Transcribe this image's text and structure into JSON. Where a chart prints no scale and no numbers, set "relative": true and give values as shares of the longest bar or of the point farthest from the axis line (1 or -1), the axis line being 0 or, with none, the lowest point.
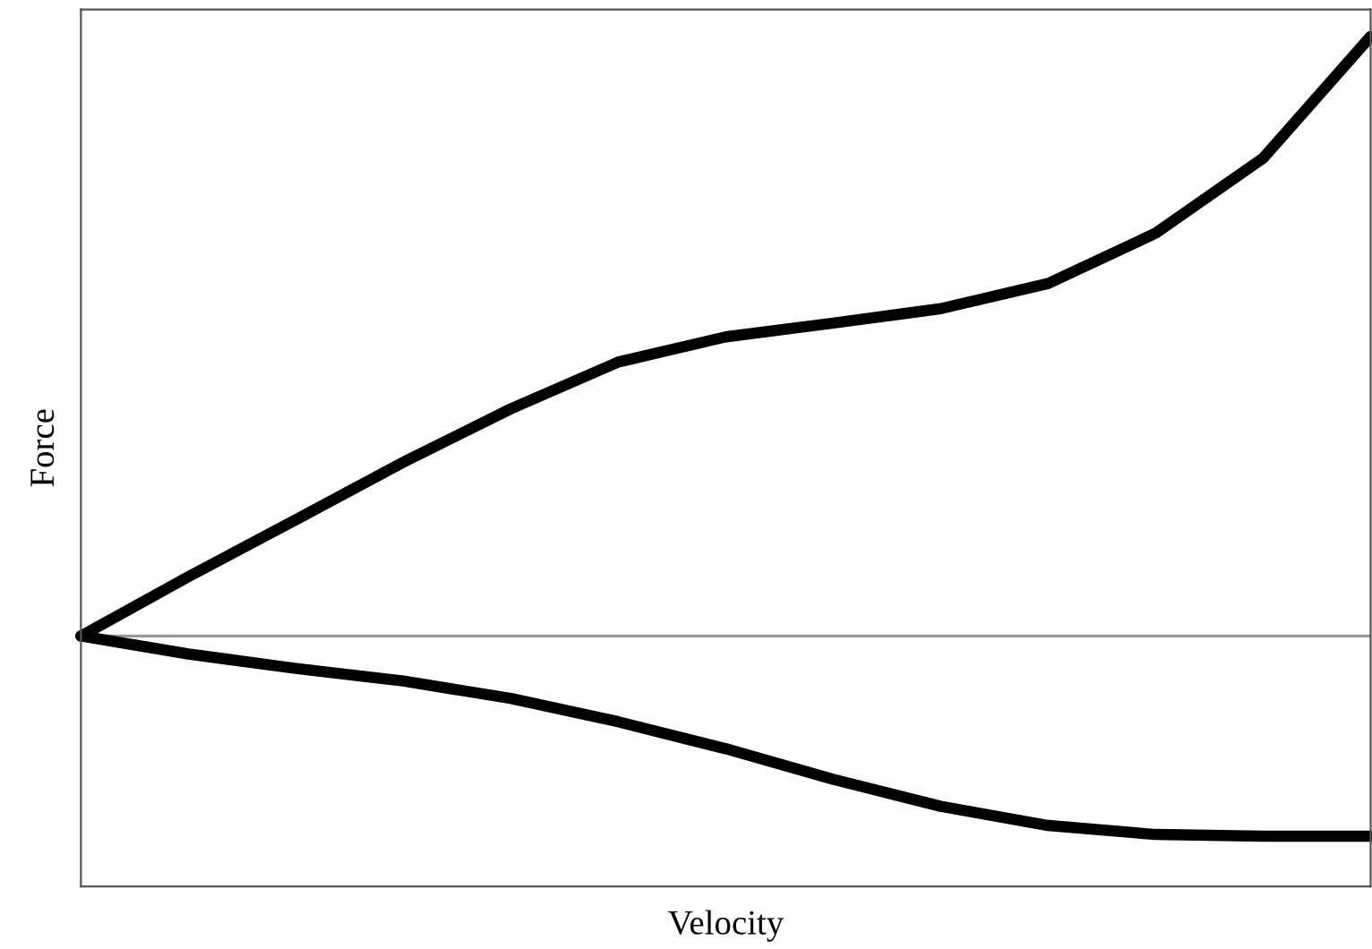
{
  "chart_data": {
    "type": "line",
    "relative": true,
    "xlabel": "Velocity",
    "ylabel": "Force",
    "categories": [
      null,
      null,
      null,
      null,
      null,
      null,
      null,
      null,
      null,
      null,
      null,
      null,
      null
    ],
    "series": [
      {
        "color": "#000000",
        "values": [
          0,
          0.099,
          0.194,
          0.29,
          0.379,
          0.457,
          0.499,
          0.522,
          0.546,
          0.588,
          0.672,
          0.797,
          1
        ]
      },
      {
        "color": "#000000",
        "values": [
          0,
          -0.03,
          -0.054,
          -0.075,
          -0.104,
          -0.143,
          -0.188,
          -0.239,
          -0.284,
          -0.316,
          -0.331,
          -0.334,
          -0.334
        ]
      }
    ],
    "grid": false,
    "legend": false
  }
}
